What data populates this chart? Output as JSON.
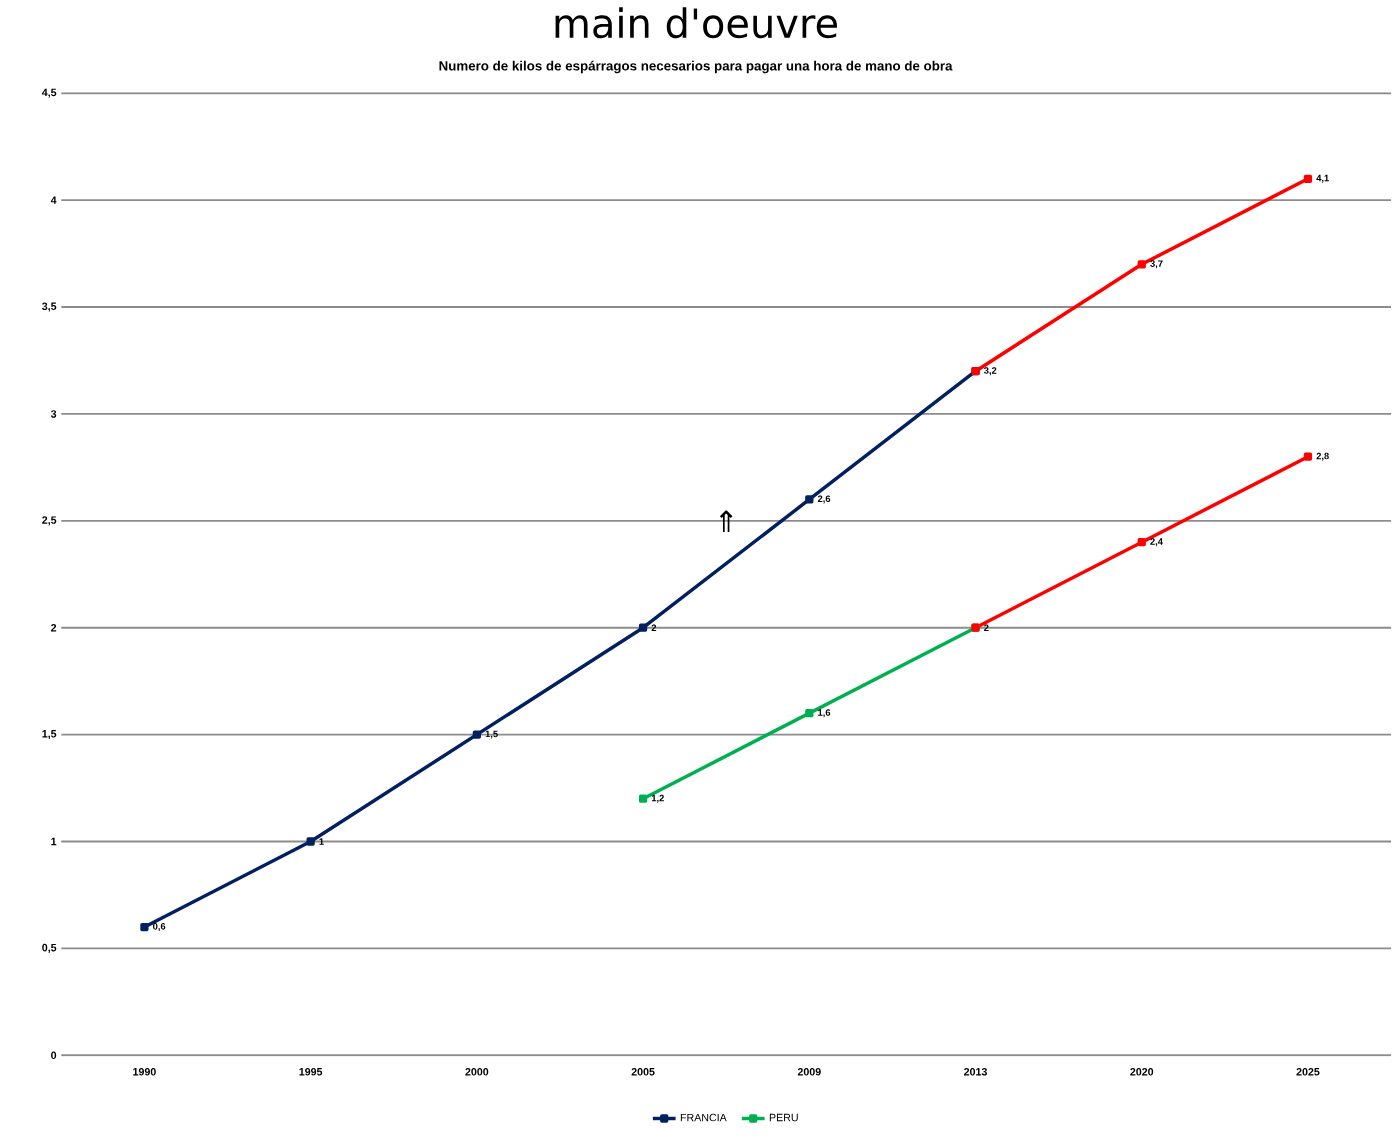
{
  "chart_data": {
    "type": "line",
    "title": "Numero de kilos de espárragos necesarios para pagar una hora de mano de obra",
    "annotations": [
      "main d'oeuvre",
      "⇑"
    ],
    "categories": [
      "1990",
      "1995",
      "2000",
      "2005",
      "2009",
      "2013",
      "2020",
      "2025"
    ],
    "series": [
      {
        "name": "FRANCIA",
        "color": "#002060",
        "values": [
          0.6,
          1,
          1.5,
          2,
          2.6,
          3.2,
          null,
          null
        ],
        "value_labels": [
          "0,6",
          "1",
          "1,5",
          "2",
          "2,6",
          "3,2",
          null,
          null
        ]
      },
      {
        "color": "#ff0000",
        "values": [
          null,
          null,
          null,
          null,
          null,
          3.2,
          3.7,
          4.1
        ],
        "value_labels": [
          null,
          null,
          null,
          null,
          null,
          null,
          "3,7",
          "4,1"
        ]
      },
      {
        "name": "PERU",
        "color": "#00b050",
        "values": [
          null,
          null,
          null,
          1.2,
          1.6,
          2,
          null,
          null
        ],
        "value_labels": [
          null,
          null,
          null,
          "1,2",
          "1,6",
          "2",
          null,
          null
        ]
      },
      {
        "color": "#ff0000",
        "values": [
          null,
          null,
          null,
          null,
          null,
          2,
          2.4,
          2.8
        ],
        "value_labels": [
          null,
          null,
          null,
          null,
          null,
          null,
          "2,4",
          "2,8"
        ]
      }
    ],
    "ylim": [
      0,
      4.5
    ],
    "yticks": [
      0,
      {
        "value": 0.5,
        "label": "0,5"
      },
      1,
      {
        "value": 1.5,
        "label": "1,5"
      },
      2,
      {
        "value": 2.5,
        "label": "2,5"
      },
      3,
      {
        "value": 3.5,
        "label": "3,5"
      },
      4,
      {
        "value": 4.5,
        "label": "4,5"
      }
    ],
    "grid": "y",
    "legend": "bottom",
    "marker": "square",
    "line_style": "solid"
  }
}
